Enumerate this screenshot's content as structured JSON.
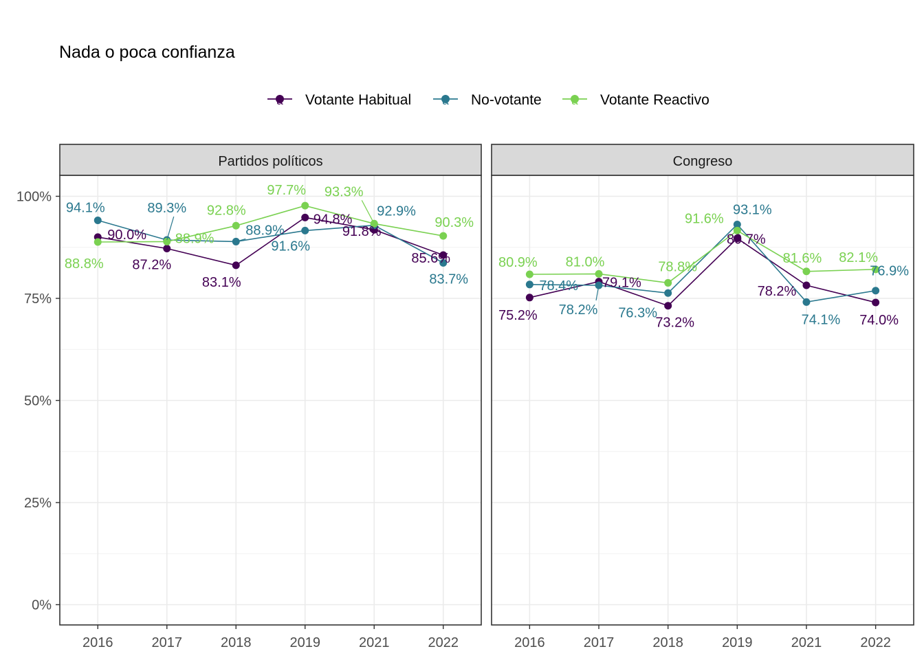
{
  "title": "Nada o poca confianza",
  "legend": {
    "placement": "top",
    "key_glyph": "a",
    "items": [
      {
        "name": "Votante Habitual",
        "color": "#440154"
      },
      {
        "name": "No-votante",
        "color": "#2A788E"
      },
      {
        "name": "Votante Reactivo",
        "color": "#7AD151"
      }
    ]
  },
  "chart_data": [
    {
      "type": "line",
      "panel_title": "Partidos políticos",
      "categories": [
        "2016",
        "2017",
        "2018",
        "2019",
        "2021",
        "2022"
      ],
      "ylim": [
        0,
        100
      ],
      "y_ticks": [
        "0%",
        "25%",
        "50%",
        "75%",
        "100%"
      ],
      "y_tick_values": [
        0,
        25,
        50,
        75,
        100
      ],
      "grid": true,
      "series": [
        {
          "name": "Votante Habitual",
          "values": [
            90.0,
            87.2,
            83.1,
            94.8,
            91.8,
            85.6
          ],
          "labels": [
            "90.0%",
            "87.2%",
            "83.1%",
            "94.8%",
            "91.8%",
            "85.6%"
          ]
        },
        {
          "name": "No-votante",
          "values": [
            94.1,
            89.3,
            88.9,
            91.6,
            92.9,
            83.7
          ],
          "labels": [
            "94.1%",
            "89.3%",
            "88.9%",
            "91.6%",
            "92.9%",
            "83.7%"
          ]
        },
        {
          "name": "Votante Reactivo",
          "values": [
            88.8,
            88.9,
            92.8,
            97.7,
            93.3,
            90.3
          ],
          "labels": [
            "88.8%",
            "88.9%",
            "92.8%",
            "97.7%",
            "93.3%",
            "90.3%"
          ]
        }
      ]
    },
    {
      "type": "line",
      "panel_title": "Congreso",
      "categories": [
        "2016",
        "2017",
        "2018",
        "2019",
        "2021",
        "2022"
      ],
      "ylim": [
        0,
        100
      ],
      "y_ticks": [
        "0%",
        "25%",
        "50%",
        "75%",
        "100%"
      ],
      "y_tick_values": [
        0,
        25,
        50,
        75,
        100
      ],
      "grid": true,
      "series": [
        {
          "name": "Votante Habitual",
          "values": [
            75.2,
            79.1,
            73.2,
            89.7,
            78.2,
            74.0
          ],
          "labels": [
            "75.2%",
            "79.1%",
            "73.2%",
            "89.7%",
            "78.2%",
            "74.0%"
          ]
        },
        {
          "name": "No-votante",
          "values": [
            78.4,
            78.2,
            76.3,
            93.1,
            74.1,
            76.9
          ],
          "labels": [
            "78.4%",
            "78.2%",
            "76.3%",
            "93.1%",
            "74.1%",
            "76.9%"
          ]
        },
        {
          "name": "Votante Reactivo",
          "values": [
            80.9,
            81.0,
            78.8,
            91.6,
            81.6,
            82.1
          ],
          "labels": [
            "80.9%",
            "81.0%",
            "78.8%",
            "91.6%",
            "81.6%",
            "82.1%"
          ]
        }
      ]
    }
  ]
}
